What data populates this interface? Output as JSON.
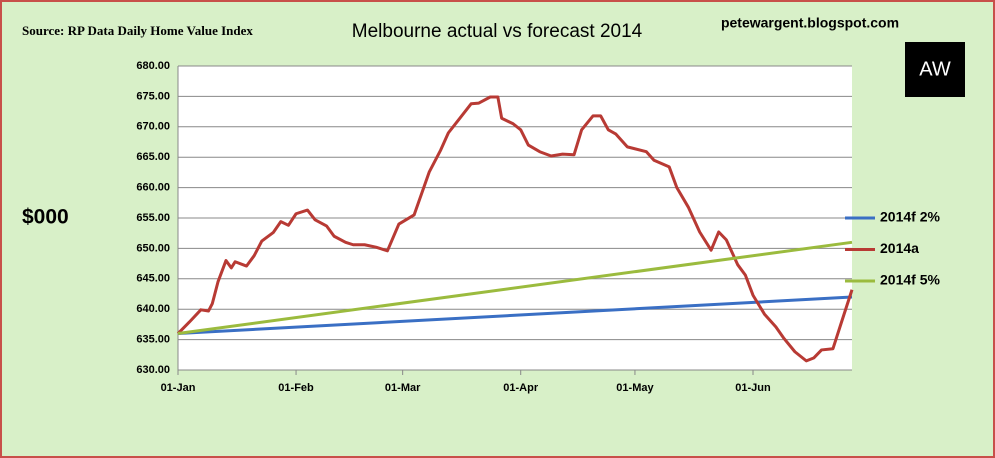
{
  "source": "Source: RP Data Daily Home Value Index",
  "blog": "petewargent.blogspot.com",
  "logo": "AW",
  "chart_data": {
    "type": "line",
    "title": "Melbourne actual vs forecast 2014",
    "ylabel": "$000",
    "xlim": [
      0,
      177
    ],
    "xticks": [
      {
        "value": 0,
        "label": "01-Jan"
      },
      {
        "value": 31,
        "label": "01-Feb"
      },
      {
        "value": 59,
        "label": "01-Mar"
      },
      {
        "value": 90,
        "label": "01-Apr"
      },
      {
        "value": 120,
        "label": "01-May"
      },
      {
        "value": 151,
        "label": "01-Jun"
      }
    ],
    "ylim": [
      630,
      680
    ],
    "yticks": [
      {
        "value": 630,
        "label": "630.00"
      },
      {
        "value": 635,
        "label": "635.00"
      },
      {
        "value": 640,
        "label": "640.00"
      },
      {
        "value": 645,
        "label": "645.00"
      },
      {
        "value": 650,
        "label": "650.00"
      },
      {
        "value": 655,
        "label": "655.00"
      },
      {
        "value": 660,
        "label": "660.00"
      },
      {
        "value": 665,
        "label": "665.00"
      },
      {
        "value": 670,
        "label": "670.00"
      },
      {
        "value": 675,
        "label": "675.00"
      },
      {
        "value": 680,
        "label": "680.00"
      }
    ],
    "grid": true,
    "legend": "right",
    "series": [
      {
        "name": "2014f 2%",
        "color": "#3a6fc4",
        "x": [
          0,
          177
        ],
        "values": [
          636,
          642
        ]
      },
      {
        "name": "2014a",
        "color": "#b83a34",
        "x": [
          0,
          3,
          6,
          8,
          9,
          10.5,
          12.6,
          14,
          15,
          18,
          20,
          22,
          25,
          27,
          29,
          31,
          34,
          36,
          39,
          41,
          44,
          46,
          49,
          52,
          55,
          58,
          62,
          66,
          69,
          71,
          74,
          77,
          79,
          82,
          84,
          85,
          88,
          90,
          92,
          95,
          98,
          101,
          104,
          106,
          109,
          111,
          113,
          115,
          118,
          123,
          125,
          129,
          131,
          134,
          137,
          140,
          142,
          144,
          147,
          149,
          151,
          154,
          157,
          159,
          162,
          165,
          167,
          169,
          172,
          174,
          177
        ],
        "values": [
          636,
          637.9,
          639.9,
          639.7,
          640.9,
          644.5,
          648,
          646.8,
          647.8,
          647.1,
          648.8,
          651.2,
          652.6,
          654.4,
          653.8,
          655.7,
          656.3,
          654.7,
          653.7,
          652,
          651,
          650.6,
          650.6,
          650.2,
          649.6,
          654,
          655.5,
          662.6,
          666.2,
          669,
          671.4,
          673.8,
          673.9,
          674.9,
          674.9,
          671.4,
          670.5,
          669.5,
          667,
          665.9,
          665.2,
          665.5,
          665.4,
          669.5,
          671.8,
          671.8,
          669.5,
          668.8,
          666.7,
          665.9,
          664.5,
          663.4,
          660,
          656.8,
          652.7,
          649.7,
          652.7,
          651.4,
          647.3,
          645.6,
          642.3,
          639.2,
          637.1,
          635.3,
          633,
          631.5,
          632,
          633.3,
          633.5,
          637.4,
          643.2
        ]
      },
      {
        "name": "2014f 5%",
        "color": "#9bbb3e",
        "x": [
          0,
          177
        ],
        "values": [
          636,
          651
        ]
      }
    ]
  }
}
